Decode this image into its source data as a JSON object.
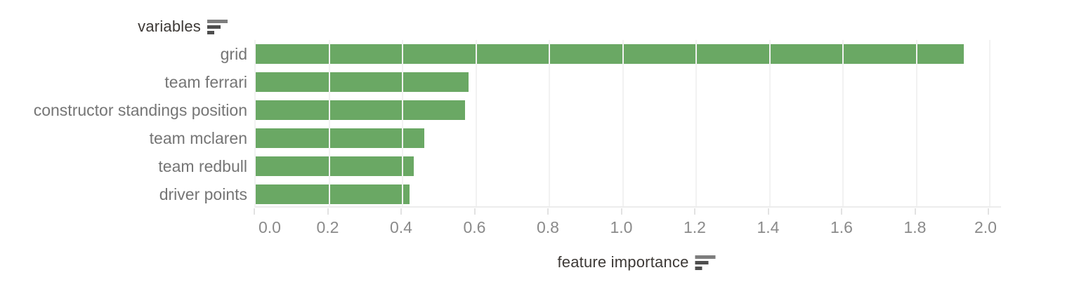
{
  "chart_data": {
    "type": "bar",
    "orientation": "horizontal",
    "categories": [
      "grid",
      "team ferrari",
      "constructor standings position",
      "team mclaren",
      "team redbull",
      "driver points"
    ],
    "values": [
      1.93,
      0.58,
      0.57,
      0.46,
      0.43,
      0.42
    ],
    "title": "",
    "xlabel": "feature importance",
    "ylabel": "variables",
    "xlim": [
      0.0,
      2.0
    ],
    "xtick_labels": [
      "0.0",
      "0.2",
      "0.4",
      "0.6",
      "0.8",
      "1.0",
      "1.2",
      "1.4",
      "1.6",
      "1.8",
      "2.0"
    ],
    "grid": true,
    "legend": false,
    "sort_order": "descending",
    "bar_color": "#6aa864"
  },
  "row_axis": {
    "title": "variables",
    "sort_icon": "sort-descending-icon"
  },
  "x_axis": {
    "title": "feature importance",
    "sort_icon": "sort-descending-icon"
  },
  "colors": {
    "bar": "#6aa864",
    "grid_line": "#f2f2f2",
    "axis_line": "#ececec",
    "tick_mark": "#e2e2e2",
    "category_label_text": "#757575",
    "tick_label_text": "#8a8a8a",
    "title_text": "#3d3936",
    "background": "#ffffff"
  }
}
